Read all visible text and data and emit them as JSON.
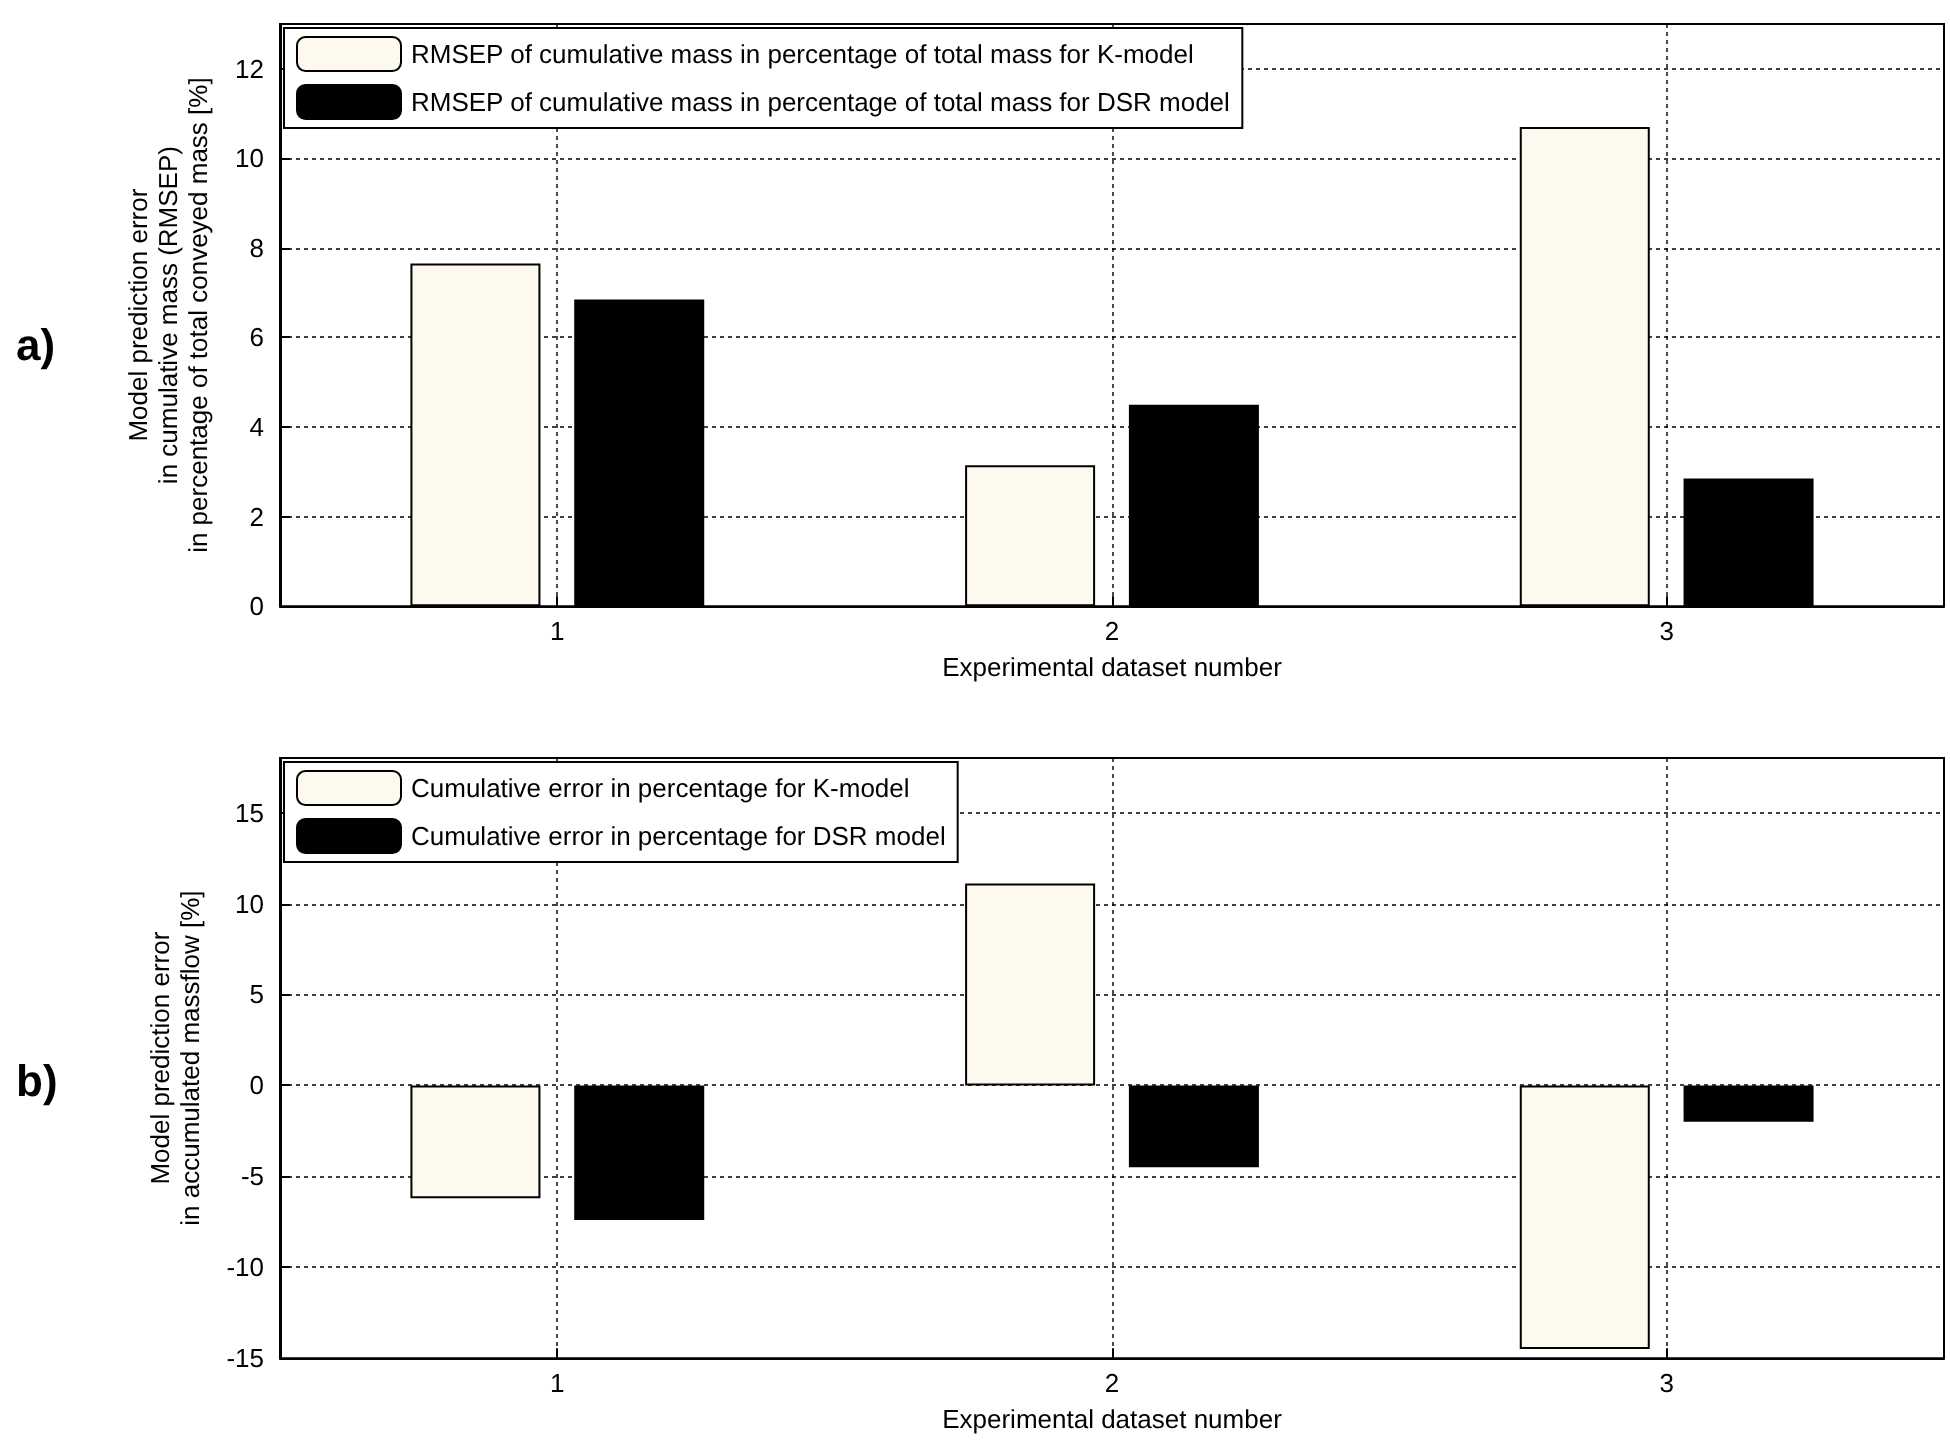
{
  "chart_data": [
    {
      "type": "bar",
      "categories": [
        "1",
        "2",
        "3"
      ],
      "xlabel": "Experimental dataset number",
      "ylabel": "Model prediction error\nin cumulative mass (RMSEP)\nin percentage of total conveyed mass [%]",
      "ylim": [
        0,
        13
      ],
      "yticks": [
        0,
        2,
        4,
        6,
        8,
        10,
        12
      ],
      "grid": true,
      "legend": "top left",
      "annotations": [
        "a)"
      ],
      "series": [
        {
          "name": "RMSEP of cumulative mass in percentage of total mass for K-model",
          "color": "#fdf9ef",
          "values": [
            7.65,
            3.15,
            10.7
          ]
        },
        {
          "name": "RMSEP of cumulative mass in percentage of total mass for DSR model",
          "color": "#000000",
          "values": [
            6.85,
            4.5,
            2.85
          ]
        }
      ]
    },
    {
      "type": "bar",
      "categories": [
        "1",
        "2",
        "3"
      ],
      "xlabel": "Experimental dataset number",
      "ylabel": "Model prediction error\nin accumulated massflow [%]",
      "ylim": [
        -15,
        18
      ],
      "yticks": [
        -15,
        -10,
        -5,
        0,
        5,
        10,
        15
      ],
      "grid": true,
      "legend": "top left",
      "annotations": [
        "b)"
      ],
      "series": [
        {
          "name": "Cumulative error in percentage for K-model",
          "color": "#fdf9ef",
          "values": [
            -6.2,
            11.1,
            -14.5
          ]
        },
        {
          "name": "Cumulative error in percentage for DSR model",
          "color": "#000000",
          "values": [
            -7.4,
            -4.5,
            -2.0
          ]
        }
      ]
    }
  ]
}
